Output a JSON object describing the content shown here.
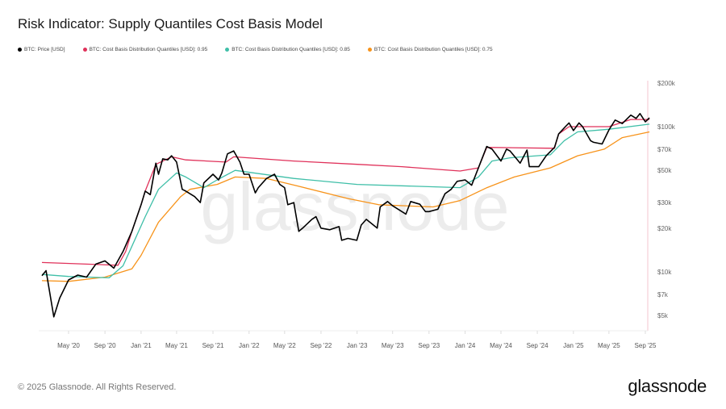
{
  "header": {
    "title": "Risk Indicator: Supply Quantiles Cost Basis Model"
  },
  "footer": {
    "copyright": "© 2025 Glassnode. All Rights Reserved.",
    "logo": "glassnode"
  },
  "watermark": "glassnode",
  "chart_data": {
    "type": "line",
    "title": "Risk Indicator: Supply Quantiles Cost Basis Model",
    "y_scale": "log",
    "ylim": [
      4000,
      210000
    ],
    "y_ticks": [
      {
        "value": 5000,
        "label": "$5k"
      },
      {
        "value": 7000,
        "label": "$7k"
      },
      {
        "value": 10000,
        "label": "$10k"
      },
      {
        "value": 20000,
        "label": "$20k"
      },
      {
        "value": 30000,
        "label": "$30k"
      },
      {
        "value": 50000,
        "label": "$50k"
      },
      {
        "value": 70000,
        "label": "$70k"
      },
      {
        "value": 100000,
        "label": "$100k"
      },
      {
        "value": 200000,
        "label": "$200k"
      }
    ],
    "xlim": [
      "2020-02-01",
      "2025-09-20"
    ],
    "x_ticks": [
      {
        "date": "2020-05-01",
        "label": "May '20"
      },
      {
        "date": "2020-09-01",
        "label": "Sep '20"
      },
      {
        "date": "2021-01-01",
        "label": "Jan '21"
      },
      {
        "date": "2021-05-01",
        "label": "May '21"
      },
      {
        "date": "2021-09-01",
        "label": "Sep '21"
      },
      {
        "date": "2022-01-01",
        "label": "Jan '22"
      },
      {
        "date": "2022-05-01",
        "label": "May '22"
      },
      {
        "date": "2022-09-01",
        "label": "Sep '22"
      },
      {
        "date": "2023-01-01",
        "label": "Jan '23"
      },
      {
        "date": "2023-05-01",
        "label": "May '23"
      },
      {
        "date": "2023-09-01",
        "label": "Sep '23"
      },
      {
        "date": "2024-01-01",
        "label": "Jan '24"
      },
      {
        "date": "2024-05-01",
        "label": "May '24"
      },
      {
        "date": "2024-09-01",
        "label": "Sep '24"
      },
      {
        "date": "2025-01-01",
        "label": "Jan '25"
      },
      {
        "date": "2025-05-01",
        "label": "May '25"
      },
      {
        "date": "2025-09-01",
        "label": "Sep '25"
      }
    ],
    "grid": false,
    "legend_placement": "top-left",
    "series": [
      {
        "name": "BTC: Price [USD]",
        "color": "#000000",
        "points": [
          [
            "2020-02-01",
            9400
          ],
          [
            "2020-02-15",
            10200
          ],
          [
            "2020-03-12",
            4900
          ],
          [
            "2020-04-01",
            6600
          ],
          [
            "2020-05-01",
            8800
          ],
          [
            "2020-06-01",
            9500
          ],
          [
            "2020-07-01",
            9200
          ],
          [
            "2020-08-01",
            11300
          ],
          [
            "2020-09-01",
            11900
          ],
          [
            "2020-10-01",
            10600
          ],
          [
            "2020-11-01",
            13800
          ],
          [
            "2020-12-01",
            19000
          ],
          [
            "2021-01-01",
            29000
          ],
          [
            "2021-01-15",
            36000
          ],
          [
            "2021-02-01",
            34000
          ],
          [
            "2021-02-20",
            56000
          ],
          [
            "2021-03-01",
            47000
          ],
          [
            "2021-03-15",
            60000
          ],
          [
            "2021-04-01",
            59000
          ],
          [
            "2021-04-14",
            63000
          ],
          [
            "2021-05-01",
            57000
          ],
          [
            "2021-05-20",
            37000
          ],
          [
            "2021-06-01",
            36000
          ],
          [
            "2021-07-01",
            33000
          ],
          [
            "2021-07-20",
            30000
          ],
          [
            "2021-08-01",
            41000
          ],
          [
            "2021-09-01",
            47000
          ],
          [
            "2021-09-20",
            43000
          ],
          [
            "2021-10-01",
            48000
          ],
          [
            "2021-10-20",
            65000
          ],
          [
            "2021-11-10",
            68000
          ],
          [
            "2021-12-01",
            57000
          ],
          [
            "2021-12-15",
            47000
          ],
          [
            "2022-01-01",
            47000
          ],
          [
            "2022-01-22",
            35000
          ],
          [
            "2022-02-01",
            38000
          ],
          [
            "2022-03-01",
            44000
          ],
          [
            "2022-03-28",
            47000
          ],
          [
            "2022-04-15",
            40000
          ],
          [
            "2022-05-01",
            38000
          ],
          [
            "2022-05-12",
            29000
          ],
          [
            "2022-06-01",
            30000
          ],
          [
            "2022-06-18",
            19000
          ],
          [
            "2022-07-01",
            20000
          ],
          [
            "2022-08-01",
            23000
          ],
          [
            "2022-08-15",
            24000
          ],
          [
            "2022-09-01",
            20000
          ],
          [
            "2022-10-01",
            19500
          ],
          [
            "2022-11-01",
            20500
          ],
          [
            "2022-11-10",
            16500
          ],
          [
            "2022-12-01",
            17000
          ],
          [
            "2022-12-31",
            16500
          ],
          [
            "2023-01-15",
            21000
          ],
          [
            "2023-02-01",
            23000
          ],
          [
            "2023-03-10",
            20000
          ],
          [
            "2023-03-20",
            28000
          ],
          [
            "2023-04-14",
            30500
          ],
          [
            "2023-05-01",
            28500
          ],
          [
            "2023-06-15",
            25000
          ],
          [
            "2023-07-01",
            30500
          ],
          [
            "2023-08-01",
            29200
          ],
          [
            "2023-08-20",
            26000
          ],
          [
            "2023-09-01",
            26000
          ],
          [
            "2023-10-01",
            27000
          ],
          [
            "2023-10-25",
            34500
          ],
          [
            "2023-11-15",
            37000
          ],
          [
            "2023-12-05",
            42000
          ],
          [
            "2024-01-01",
            43000
          ],
          [
            "2024-01-23",
            39500
          ],
          [
            "2024-02-15",
            52000
          ],
          [
            "2024-03-14",
            73000
          ],
          [
            "2024-04-01",
            70000
          ],
          [
            "2024-05-01",
            58000
          ],
          [
            "2024-05-20",
            70000
          ],
          [
            "2024-06-01",
            68000
          ],
          [
            "2024-07-05",
            56000
          ],
          [
            "2024-07-28",
            69000
          ],
          [
            "2024-08-05",
            53000
          ],
          [
            "2024-09-06",
            53000
          ],
          [
            "2024-10-01",
            63000
          ],
          [
            "2024-10-29",
            72000
          ],
          [
            "2024-11-12",
            89000
          ],
          [
            "2024-12-05",
            100000
          ],
          [
            "2024-12-17",
            106000
          ],
          [
            "2025-01-01",
            94000
          ],
          [
            "2025-01-20",
            106000
          ],
          [
            "2025-02-01",
            100000
          ],
          [
            "2025-02-28",
            80000
          ],
          [
            "2025-03-10",
            78000
          ],
          [
            "2025-04-08",
            76000
          ],
          [
            "2025-05-01",
            95000
          ],
          [
            "2025-05-22",
            111000
          ],
          [
            "2025-06-15",
            105000
          ],
          [
            "2025-07-14",
            120000
          ],
          [
            "2025-08-01",
            114000
          ],
          [
            "2025-08-14",
            123000
          ],
          [
            "2025-09-01",
            108000
          ],
          [
            "2025-09-15",
            115000
          ]
        ]
      },
      {
        "name": "BTC: Cost Basis Distribution Quantiles [USD]: 0.95",
        "color": "#e0315a",
        "points": [
          [
            "2020-02-01",
            11600
          ],
          [
            "2020-10-15",
            11100
          ],
          [
            "2020-11-10",
            13800
          ],
          [
            "2020-12-01",
            19000
          ],
          [
            "2021-01-01",
            29000
          ],
          [
            "2021-01-15",
            36000
          ],
          [
            "2021-02-20",
            55000
          ],
          [
            "2021-04-14",
            62000
          ],
          [
            "2021-06-01",
            59000
          ],
          [
            "2021-10-15",
            57000
          ],
          [
            "2021-11-10",
            62000
          ],
          [
            "2022-06-01",
            58000
          ],
          [
            "2023-01-01",
            55000
          ],
          [
            "2023-06-01",
            53000
          ],
          [
            "2023-12-15",
            49500
          ],
          [
            "2024-02-15",
            52000
          ],
          [
            "2024-03-14",
            72000
          ],
          [
            "2024-10-29",
            71000
          ],
          [
            "2024-11-12",
            89000
          ],
          [
            "2024-12-17",
            100000
          ],
          [
            "2025-05-01",
            100000
          ],
          [
            "2025-07-14",
            112000
          ],
          [
            "2025-09-15",
            112000
          ]
        ]
      },
      {
        "name": "BTC: Cost Basis Distribution Quantiles [USD]: 0.85",
        "color": "#3fbfa8",
        "points": [
          [
            "2020-02-01",
            9600
          ],
          [
            "2020-05-01",
            9300
          ],
          [
            "2020-09-15",
            9100
          ],
          [
            "2020-11-01",
            11000
          ],
          [
            "2020-12-01",
            15000
          ],
          [
            "2021-01-15",
            24000
          ],
          [
            "2021-03-01",
            37000
          ],
          [
            "2021-05-01",
            48000
          ],
          [
            "2021-06-01",
            45000
          ],
          [
            "2021-08-01",
            38000
          ],
          [
            "2021-09-15",
            43000
          ],
          [
            "2021-11-15",
            50000
          ],
          [
            "2022-06-01",
            44000
          ],
          [
            "2023-01-01",
            40000
          ],
          [
            "2023-12-15",
            38000
          ],
          [
            "2024-02-15",
            45000
          ],
          [
            "2024-04-01",
            58000
          ],
          [
            "2024-06-01",
            61000
          ],
          [
            "2024-10-15",
            64000
          ],
          [
            "2024-12-01",
            80000
          ],
          [
            "2025-01-15",
            92000
          ],
          [
            "2025-05-01",
            96000
          ],
          [
            "2025-09-15",
            104000
          ]
        ]
      },
      {
        "name": "BTC: Cost Basis Distribution Quantiles [USD]: 0.75",
        "color": "#f7931a",
        "points": [
          [
            "2020-02-01",
            8700
          ],
          [
            "2020-05-01",
            8600
          ],
          [
            "2020-09-01",
            9200
          ],
          [
            "2020-12-01",
            10500
          ],
          [
            "2021-01-01",
            13000
          ],
          [
            "2021-03-01",
            22000
          ],
          [
            "2021-05-15",
            33000
          ],
          [
            "2021-06-15",
            37000
          ],
          [
            "2021-09-15",
            40000
          ],
          [
            "2021-11-15",
            45000
          ],
          [
            "2022-03-01",
            44000
          ],
          [
            "2022-06-15",
            39000
          ],
          [
            "2022-12-01",
            32000
          ],
          [
            "2023-03-15",
            29000
          ],
          [
            "2023-09-15",
            28000
          ],
          [
            "2023-12-15",
            31000
          ],
          [
            "2024-03-15",
            38000
          ],
          [
            "2024-06-15",
            45000
          ],
          [
            "2024-10-15",
            52000
          ],
          [
            "2025-01-15",
            63000
          ],
          [
            "2025-04-15",
            70000
          ],
          [
            "2025-06-15",
            84000
          ],
          [
            "2025-09-15",
            92000
          ]
        ]
      }
    ]
  }
}
